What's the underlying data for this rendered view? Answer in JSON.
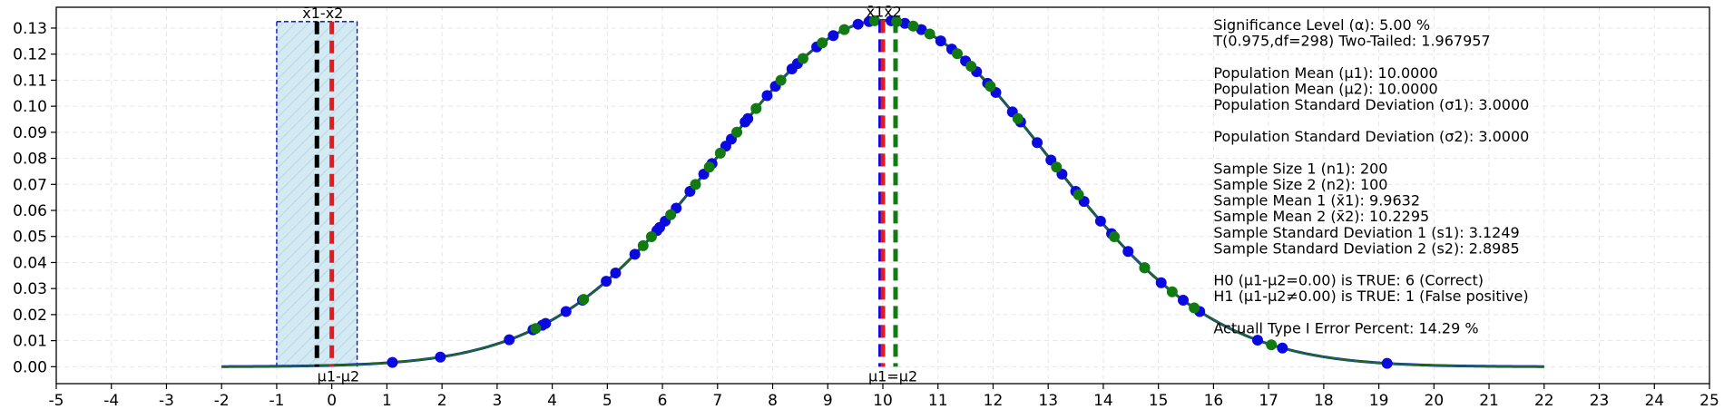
{
  "chart_data": {
    "type": "line",
    "title": "",
    "xlabel": "",
    "ylabel": "",
    "xlim": [
      -5,
      25
    ],
    "ylim": [
      -0.0065,
      0.138
    ],
    "x_ticks": [
      -5,
      -4,
      -3,
      -2,
      -1,
      0,
      1,
      2,
      3,
      4,
      5,
      6,
      7,
      8,
      9,
      10,
      11,
      12,
      13,
      14,
      15,
      16,
      17,
      18,
      19,
      20,
      21,
      22,
      23,
      24,
      25
    ],
    "y_ticks": [
      0.0,
      0.01,
      0.02,
      0.03,
      0.04,
      0.05,
      0.06,
      0.07,
      0.08,
      0.09,
      0.1,
      0.11,
      0.12,
      0.13
    ],
    "grid": true,
    "curve": {
      "mean": 10,
      "sd": 3,
      "x_range": [
        -2,
        22
      ],
      "color": "#1a6e1a"
    },
    "sample1_points_x": [
      1.1,
      1.97,
      3.22,
      3.65,
      3.82,
      3.88,
      4.25,
      4.55,
      4.98,
      5.15,
      5.5,
      5.9,
      5.95,
      6.05,
      6.25,
      6.5,
      6.75,
      6.9,
      7.15,
      7.25,
      7.5,
      7.55,
      7.9,
      8.05,
      8.35,
      8.45,
      8.8,
      9.1,
      9.55,
      9.75,
      10.15,
      10.4,
      10.7,
      11.05,
      11.25,
      11.5,
      11.7,
      11.9,
      12.05,
      12.35,
      12.5,
      12.8,
      13.05,
      13.25,
      13.5,
      13.65,
      13.95,
      14.15,
      14.45,
      14.75,
      15.05,
      15.45,
      15.75,
      16.8,
      17.25,
      19.15
    ],
    "sample2_points_x": [
      3.7,
      4.57,
      5.65,
      5.8,
      6.15,
      6.6,
      6.85,
      7.05,
      7.35,
      7.7,
      8.15,
      8.55,
      8.9,
      9.3,
      9.85,
      10.25,
      10.55,
      10.85,
      11.35,
      11.6,
      11.95,
      12.45,
      13.15,
      13.55,
      14.2,
      14.75,
      15.25,
      15.65,
      17.05
    ],
    "sample_colors": [
      "#0a0ae0",
      "#117a11"
    ],
    "shaded_interval": {
      "x_range": [
        -1,
        0.46
      ],
      "top": 0.1325,
      "fill": "#d4eaf3",
      "edge": "#0000cc"
    },
    "vlines": [
      {
        "x": -0.27,
        "color": "#000000",
        "top": 0.1325
      },
      {
        "x": 0.0,
        "color": "#e41a1c",
        "top": 0.1325
      },
      {
        "x": 9.96,
        "color": "#0000ff",
        "top": 0.133
      },
      {
        "x": 10.0,
        "color": "#e41a1c",
        "top": 0.133
      },
      {
        "x": 10.23,
        "color": "#117a11",
        "top": 0.133
      }
    ],
    "annotations": [
      {
        "text": "x̄1-x̄2",
        "x": -0.27,
        "y": 0.1325,
        "pos": "top"
      },
      {
        "text": "μ1-μ2",
        "x": 0.0,
        "y": 0.0,
        "pos": "bottom"
      },
      {
        "text": "x̄1x̄2",
        "x": 9.96,
        "y": 0.133,
        "pos": "top"
      },
      {
        "text": "μ1=μ2",
        "x": 10.0,
        "y": 0.0,
        "pos": "bottom"
      }
    ],
    "info_box": {
      "x": 16.0,
      "lines": [
        "Significance Level (α): 5.00 %",
        "T(0.975,df=298) Two-Tailed: 1.967957",
        "",
        "Population Mean (μ1): 10.0000",
        "Population Mean (μ2): 10.0000",
        "Population Standard Deviation (σ1): 3.0000",
        "",
        "Population Standard Deviation (σ2): 3.0000",
        "",
        "Sample Size 1 (n1): 200",
        "Sample Size 2 (n2): 100",
        "Sample Mean 1 (x̄1): 9.9632",
        "Sample Mean 2 (x̄2): 10.2295",
        "Sample Standard Deviation 1 (s1): 3.1249",
        "Sample Standard Deviation 2 (s2): 2.8985",
        "",
        "H0 (μ1-μ2=0.00) is TRUE: 6 (Correct)",
        "H1 (μ1-μ2≠0.00) is TRUE: 1 (False positive)",
        "",
        "Actuall Type I Error Percent: 14.29 %"
      ]
    }
  }
}
